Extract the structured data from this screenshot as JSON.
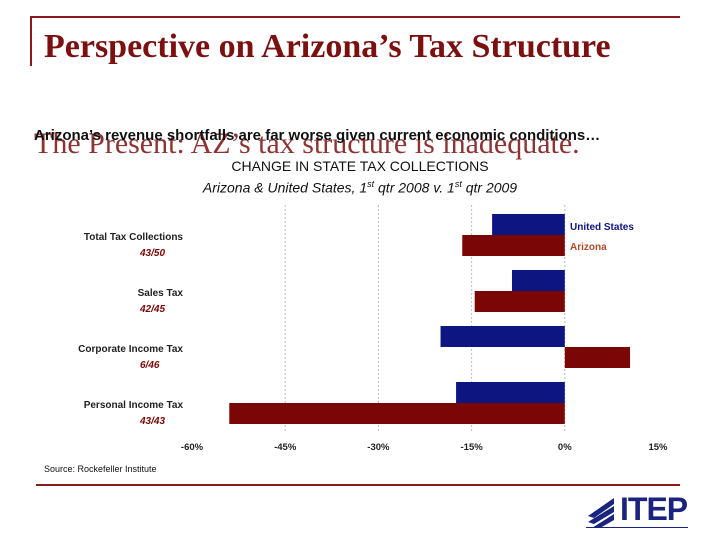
{
  "slide": {
    "title": "Perspective on Arizona’s Tax Structure",
    "subtitle_serif": "The Present:  AZ’s tax structure is inadequate.",
    "subtitle_overlay": "Arizona’s revenue shortfalls are far worse given current economic conditions…",
    "source": "Source:  Rockefeller Institute",
    "logo_text": "ITEP"
  },
  "colors": {
    "accent": "#7a1010",
    "united_states": "#0d1580",
    "arizona": "#7a0606",
    "logo": "#1a237e"
  },
  "chart_data": {
    "type": "bar",
    "orientation": "horizontal",
    "title": "CHANGE IN STATE TAX COLLECTIONS",
    "subtitle_pre": "Arizona & United States, 1",
    "subtitle_sup1": "st",
    "subtitle_mid": " qtr 2008 v. 1",
    "subtitle_sup2": "st",
    "subtitle_post": " qtr 2009",
    "categories": [
      "Total Tax Collections",
      "Sales Tax",
      "Corporate Income Tax",
      "Personal Income Tax"
    ],
    "rank_labels": [
      "43/50",
      "42/45",
      "6/46",
      "43/43"
    ],
    "series": [
      {
        "name": "United States",
        "values": [
          -11.7,
          -8.5,
          -20,
          -17.5
        ]
      },
      {
        "name": "Arizona",
        "values": [
          -16.5,
          -14.5,
          10.5,
          -54
        ]
      }
    ],
    "xlim": [
      -60,
      15
    ],
    "ticks": [
      -60,
      -45,
      -30,
      -15,
      0,
      15
    ],
    "tick_labels": [
      "-60%",
      "-45%",
      "-30%",
      "-15%",
      "0%",
      "15%"
    ],
    "gridlines": "dashed at -45, -30, -15, 0",
    "legend": "top-right"
  }
}
